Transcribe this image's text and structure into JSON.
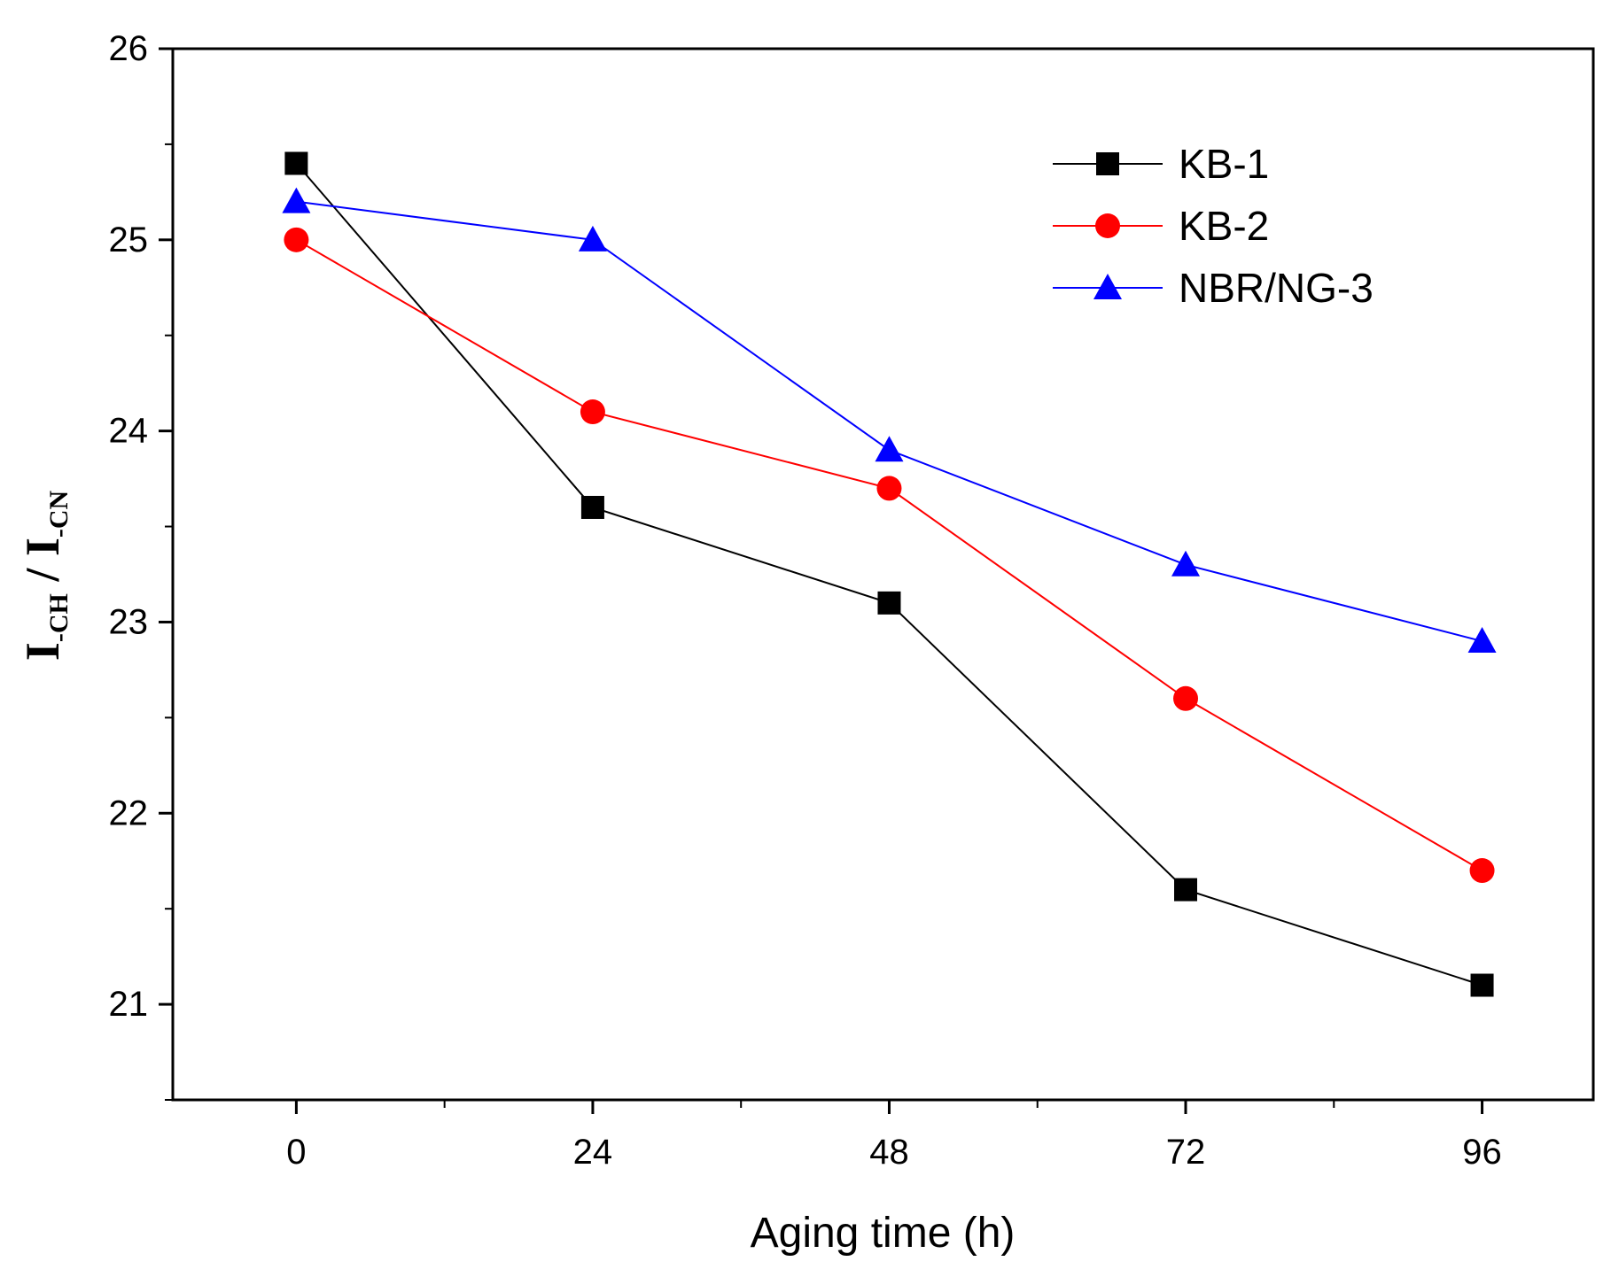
{
  "chart_data": {
    "type": "line",
    "title": "",
    "xlabel": "Aging time (h)",
    "ylabel": {
      "part1_main": "I",
      "part1_sub": "-CH",
      "separator": " / ",
      "part2_main": "I",
      "part2_sub": "-CN"
    },
    "x": [
      0,
      24,
      48,
      72,
      96
    ],
    "xlim": [
      -10,
      105
    ],
    "ylim": [
      20.5,
      26
    ],
    "xticks": [
      "0",
      "24",
      "48",
      "72",
      "96"
    ],
    "yticks": [
      "21",
      "22",
      "23",
      "24",
      "25",
      "26"
    ],
    "legend_position": "top-right",
    "series": [
      {
        "name": "KB-1",
        "marker": "square",
        "color": "#000000",
        "values": [
          25.4,
          23.6,
          23.1,
          21.6,
          21.1
        ]
      },
      {
        "name": "KB-2",
        "marker": "circle",
        "color": "#ff0000",
        "values": [
          25.0,
          24.1,
          23.7,
          22.6,
          21.7
        ]
      },
      {
        "name": "NBR/NG-3",
        "marker": "triangle",
        "color": "#0000ff",
        "values": [
          25.2,
          25.0,
          23.9,
          23.3,
          22.9
        ]
      }
    ]
  }
}
